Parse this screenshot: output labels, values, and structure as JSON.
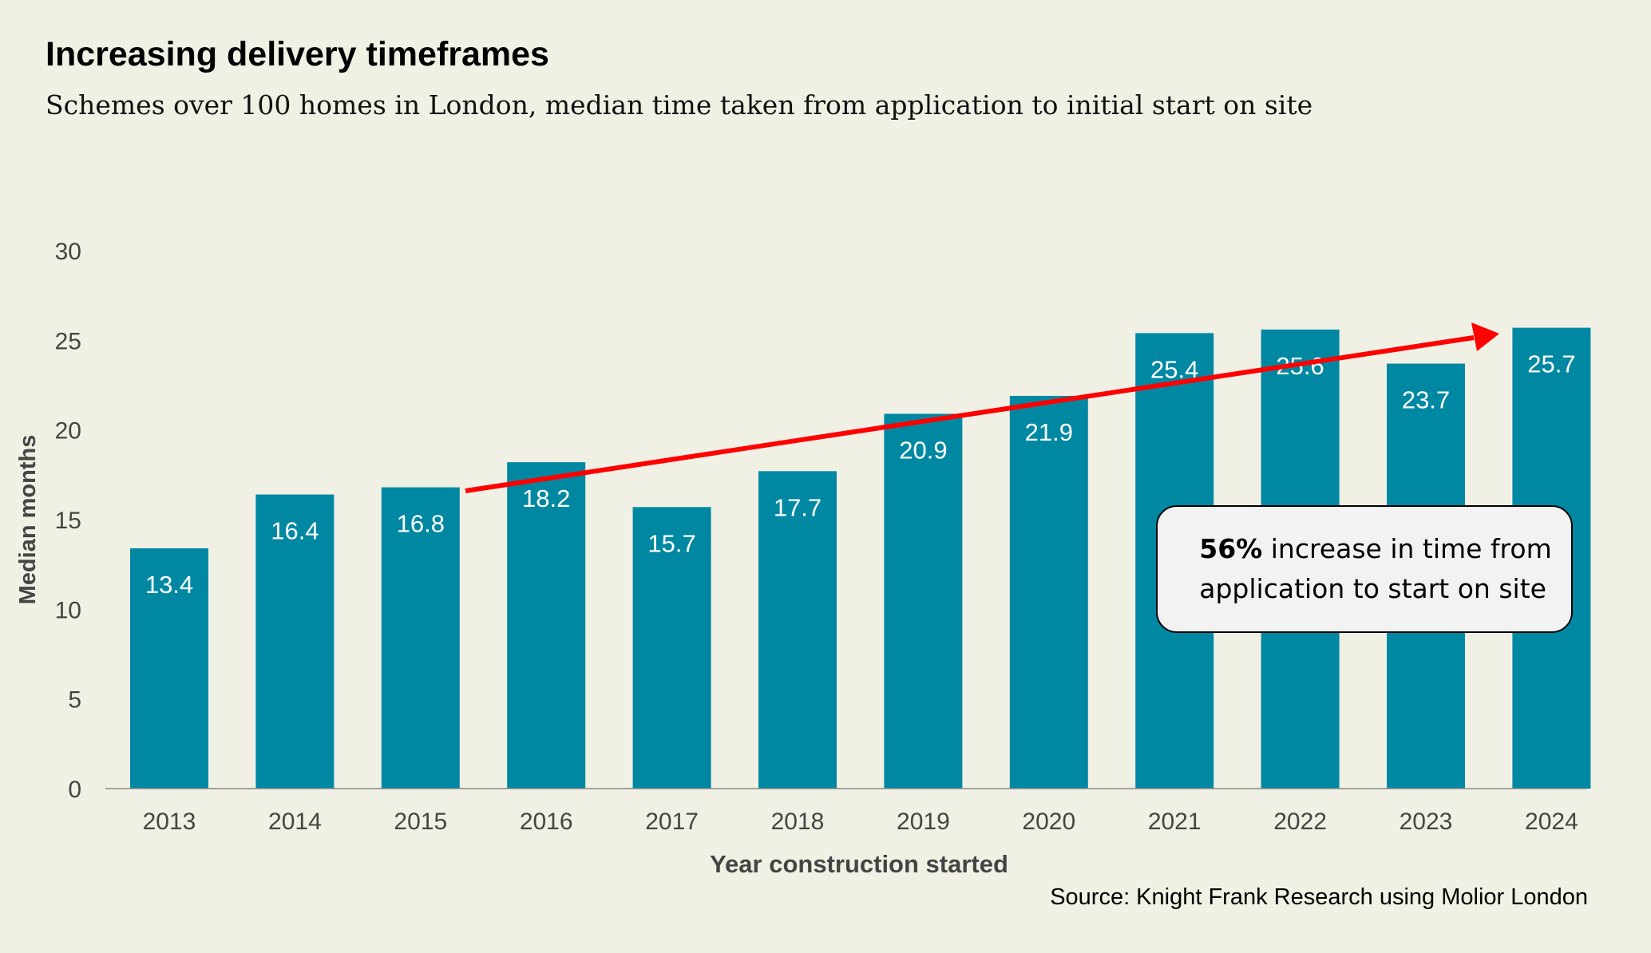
{
  "title": "Increasing delivery timeframes",
  "subtitle": "Schemes over 100 homes in London, median time taken from application to initial start on site",
  "source": "Source: Knight Frank Research using Molior London",
  "callout": {
    "bold": "56%",
    "line1_rest": " increase in time from",
    "line2": "application to start on site"
  },
  "colors": {
    "bar": "#0088a3",
    "arrow": "#ff0000",
    "background": "#f0f0e4"
  },
  "chart_data": {
    "type": "bar",
    "categories": [
      "2013",
      "2014",
      "2015",
      "2016",
      "2017",
      "2018",
      "2019",
      "2020",
      "2021",
      "2022",
      "2023",
      "2024"
    ],
    "values": [
      13.4,
      16.4,
      16.8,
      18.2,
      15.7,
      17.7,
      20.9,
      21.9,
      25.4,
      25.6,
      23.7,
      25.7
    ],
    "data_labels": [
      "13.4",
      "16.4",
      "16.8",
      "18.2",
      "15.7",
      "17.7",
      "20.9",
      "21.9",
      "25.4",
      "25.6",
      "23.7",
      "25.7"
    ],
    "xlabel": "Year construction started",
    "ylabel": "Median months",
    "ylim": [
      0,
      30
    ],
    "yticks": [
      "0",
      "5",
      "10",
      "15",
      "20",
      "25",
      "30"
    ],
    "grid": false,
    "annotation": "Trend arrow from 2015 to 2024"
  }
}
